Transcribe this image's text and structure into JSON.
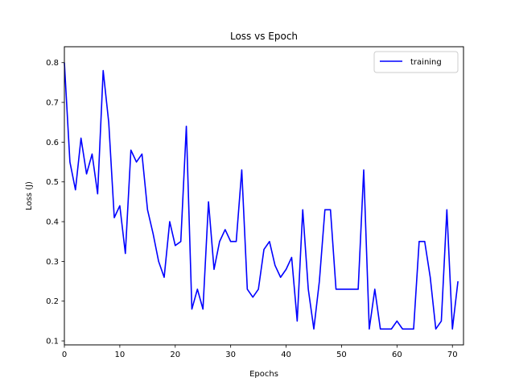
{
  "chart_data": {
    "type": "line",
    "title": "Loss vs Epoch",
    "xlabel": "Epochs",
    "ylabel": "Loss (J)",
    "xlim": [
      0,
      72
    ],
    "ylim": [
      0.09,
      0.84
    ],
    "x_ticks": [
      0,
      10,
      20,
      30,
      40,
      50,
      60,
      70
    ],
    "y_ticks": [
      0.1,
      0.2,
      0.3,
      0.4,
      0.5,
      0.6,
      0.7,
      0.8
    ],
    "x_tick_labels": [
      "0",
      "10",
      "20",
      "30",
      "40",
      "50",
      "60",
      "70"
    ],
    "y_tick_labels": [
      "0.1",
      "0.2",
      "0.3",
      "0.4",
      "0.5",
      "0.6",
      "0.7",
      "0.8"
    ],
    "grid": false,
    "legend_position": "top-right",
    "series": [
      {
        "name": "training",
        "color": "#0000ff",
        "x": [
          0,
          1,
          2,
          3,
          4,
          5,
          6,
          7,
          8,
          9,
          10,
          11,
          12,
          13,
          14,
          15,
          16,
          17,
          18,
          19,
          20,
          21,
          22,
          23,
          24,
          25,
          26,
          27,
          28,
          29,
          30,
          31,
          32,
          33,
          34,
          35,
          36,
          37,
          38,
          39,
          40,
          41,
          42,
          43,
          44,
          45,
          46,
          47,
          48,
          49,
          50,
          51,
          52,
          53,
          54,
          55,
          56,
          57,
          58,
          59,
          60,
          61,
          62,
          63,
          64,
          65,
          66,
          67,
          68,
          69,
          70,
          71
        ],
        "values": [
          0.8,
          0.55,
          0.48,
          0.61,
          0.52,
          0.57,
          0.47,
          0.78,
          0.65,
          0.41,
          0.44,
          0.32,
          0.58,
          0.55,
          0.57,
          0.43,
          0.37,
          0.3,
          0.26,
          0.4,
          0.34,
          0.35,
          0.64,
          0.18,
          0.23,
          0.18,
          0.45,
          0.28,
          0.35,
          0.38,
          0.35,
          0.35,
          0.53,
          0.23,
          0.21,
          0.23,
          0.33,
          0.35,
          0.29,
          0.26,
          0.28,
          0.31,
          0.15,
          0.43,
          0.23,
          0.13,
          0.25,
          0.43,
          0.43,
          0.23,
          0.23,
          0.23,
          0.23,
          0.23,
          0.53,
          0.13,
          0.23,
          0.13,
          0.13,
          0.13,
          0.15,
          0.13,
          0.13,
          0.13,
          0.35,
          0.35,
          0.26,
          0.13,
          0.15,
          0.43,
          0.13,
          0.25
        ]
      }
    ]
  }
}
